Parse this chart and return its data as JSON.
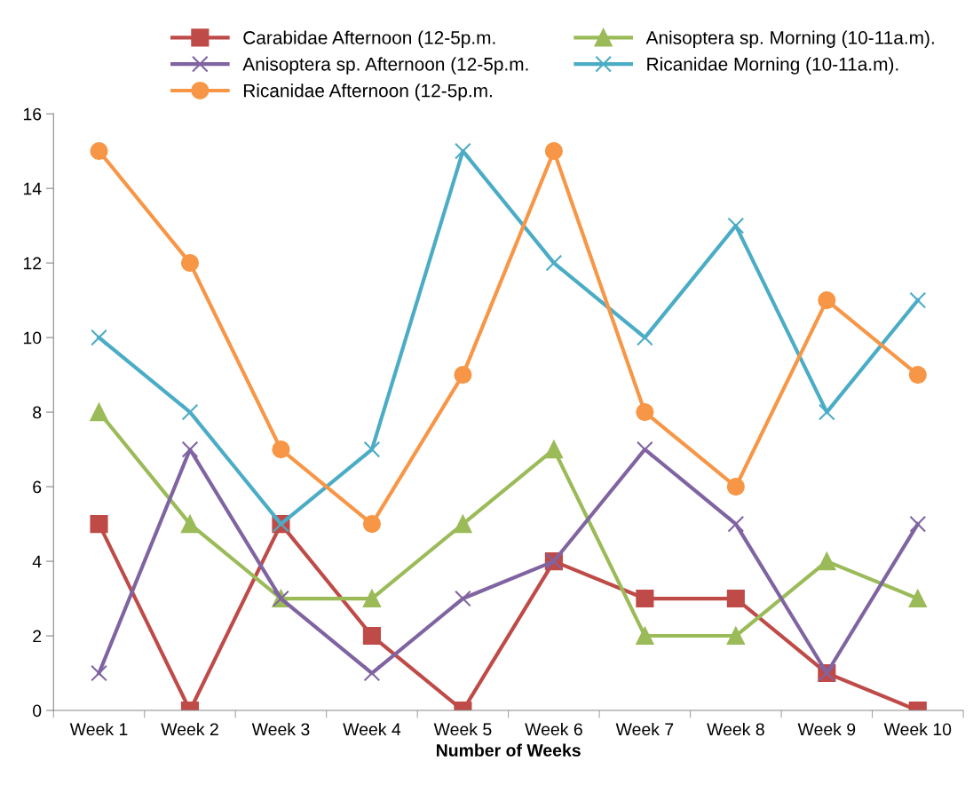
{
  "chart_data": {
    "type": "line",
    "xlabel": "Number of Weeks",
    "categories": [
      "Week 1",
      "Week 2",
      "Week 3",
      "Week 4",
      "Week 5",
      "Week 6",
      "Week 7",
      "Week 8",
      "Week 9",
      "Week 10"
    ],
    "series": [
      {
        "name": "Carabidae Afternoon (12-5p.m.",
        "color": "#be4b48",
        "marker": "square",
        "values": [
          5,
          0,
          5,
          2,
          0,
          4,
          3,
          3,
          1,
          0
        ]
      },
      {
        "name": "Anisoptera sp. Morning (10-11a.m).",
        "color": "#9bbb59",
        "marker": "triangle",
        "values": [
          8,
          5,
          3,
          3,
          5,
          7,
          2,
          2,
          4,
          3
        ]
      },
      {
        "name": "Anisoptera sp. Afternoon (12-5p.m.",
        "color": "#8064a2",
        "marker": "cross",
        "values": [
          1,
          7,
          3,
          1,
          3,
          4,
          7,
          5,
          1,
          5
        ]
      },
      {
        "name": "Ricanidae Morning (10-11a.m).",
        "color": "#4bacc6",
        "marker": "cross",
        "values": [
          10,
          8,
          5,
          7,
          15,
          12,
          10,
          13,
          8,
          11
        ]
      },
      {
        "name": "Ricanidae Afternoon (12-5p.m.",
        "color": "#f79646",
        "marker": "circle",
        "values": [
          15,
          12,
          7,
          5,
          9,
          15,
          8,
          6,
          11,
          9
        ]
      }
    ],
    "ylim": [
      0,
      16
    ],
    "yticks": [
      0,
      2,
      4,
      6,
      8,
      10,
      12,
      14,
      16
    ],
    "grid": false,
    "legend": "top"
  }
}
